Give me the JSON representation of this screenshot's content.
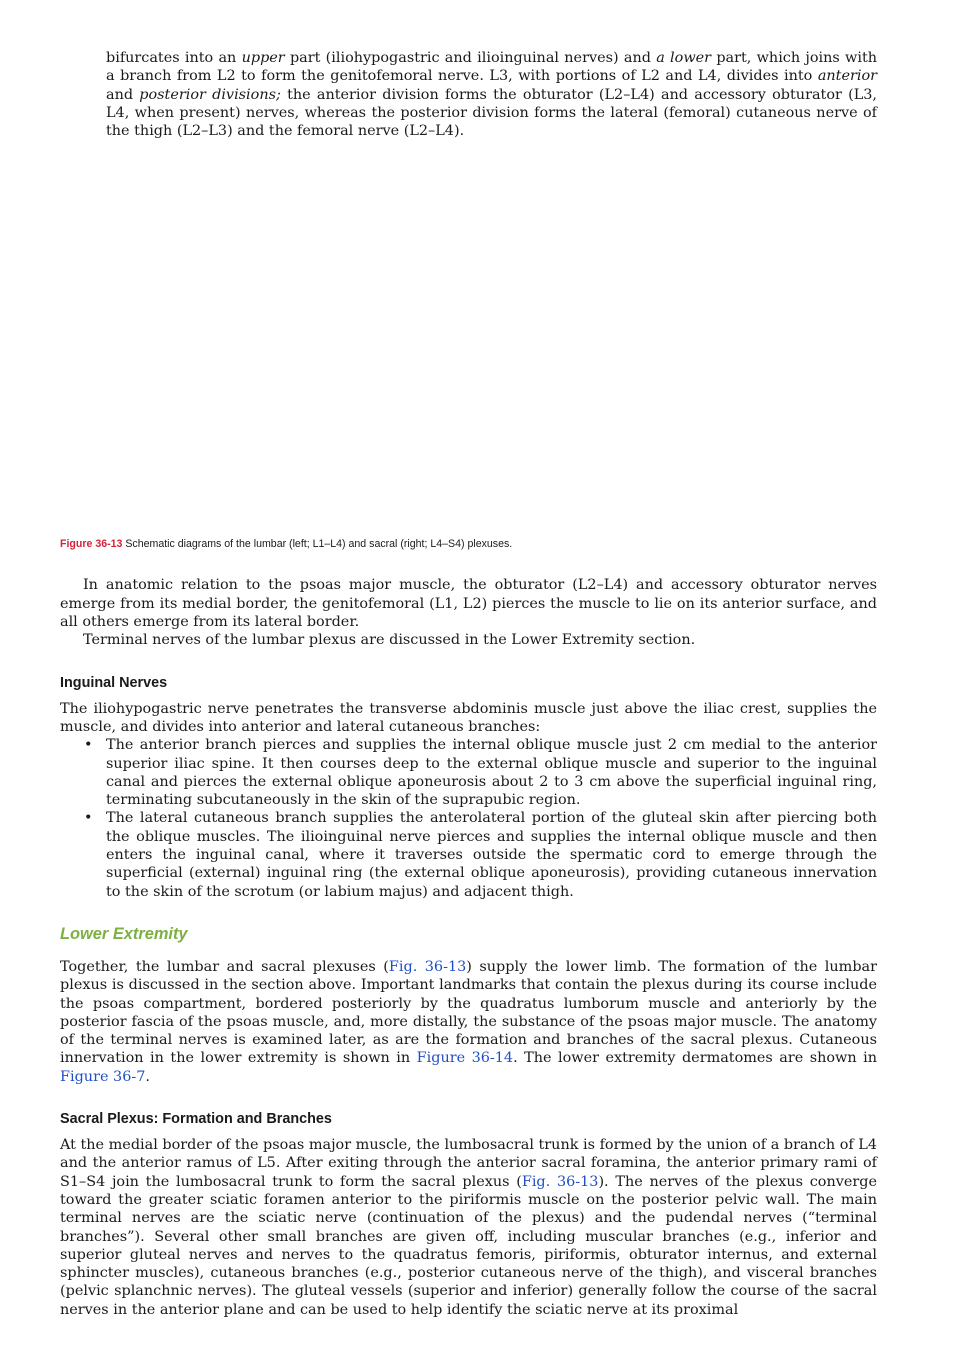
{
  "top_paragraph": {
    "p1": "bifurcates into an ",
    "e1": "upper",
    "p2": " part (iliohypogastric and ilioinguinal nerves) and ",
    "e2": "a lower",
    "p3": " part, which joins with a branch from L2 to form the genitofemoral nerve. L3, with portions of L2 and L4, divides into ",
    "e3": "anterior",
    "p4": " and ",
    "e4": "posterior divisions;",
    "p5": " the anterior division forms the obturator (L2–L4) and accessory obturator (L3, L4, when present) nerves, whereas the posterior division forms the lateral (femoral) cutaneous nerve of the thigh (L2–L3) and the femoral nerve (L2–L4)."
  },
  "figure": {
    "label": "Figure 36-13",
    "caption": " Schematic diagrams of the lumbar (left; L1–L4) and sacral (right; L4–S4) plexuses."
  },
  "psoas_paragraph": "In anatomic relation to the psoas major muscle, the obturator (L2–L4) and accessory obturator nerves emerge from its medial border, the genitofemoral (L1, L2) pierces the muscle to lie on its anterior surface, and all others emerge from its lateral border.",
  "terminal_paragraph": "Terminal nerves of the lumbar plexus are discussed in the Lower Extremity section.",
  "inguinal": {
    "heading": "Inguinal Nerves",
    "intro": "The iliohypogastric nerve penetrates the transverse abdominis muscle just above the iliac crest, supplies the muscle, and divides into anterior and lateral cutaneous branches:",
    "bullets": [
      "The anterior branch pierces and supplies the internal oblique muscle just 2 cm medial to the anterior superior iliac spine. It then courses deep to the external oblique muscle and superior to the inguinal canal and pierces the external oblique aponeurosis about 2 to 3 cm above the superficial inguinal ring, terminating subcutaneously in the skin of the suprapubic region.",
      "The lateral cutaneous branch supplies the anterolateral portion of the gluteal skin after piercing both the oblique muscles. The ilioinguinal nerve pierces and supplies the internal oblique muscle and then enters the inguinal canal, where it traverses outside the spermatic cord to emerge through the superficial (external) inguinal ring (the external oblique aponeurosis), providing cutaneous innervation to the skin of the scrotum (or labium majus) and adjacent thigh."
    ],
    "bullet_glyph": "•"
  },
  "lower_extremity": {
    "heading": "Lower Extremity",
    "p1": "Together, the lumbar and sacral plexuses (",
    "link1": "Fig. 36-13",
    "p2": ") supply the lower limb. The formation of the lumbar plexus is discussed in the section above. Important landmarks that contain the plexus during its course include the psoas compartment, bordered posteriorly by the quadratus lumborum muscle and anteriorly by the posterior fascia of the psoas muscle, and, more distally, the substance of the psoas major muscle. The anatomy of the terminal nerves is examined later, as are the formation and branches of the sacral plexus. Cutaneous innervation in the lower extremity is shown in ",
    "link2": "Figure 36-14",
    "p3": ". The lower extremity dermatomes are shown in ",
    "link3": "Figure 36-7",
    "p4": "."
  },
  "sacral": {
    "heading": "Sacral Plexus: Formation and Branches",
    "p1": "At the medial border of the psoas major muscle, the lumbosacral trunk is formed by the union of a branch of L4 and the anterior ramus of L5. After exiting through the anterior sacral foramina, the anterior primary rami of S1–S4 join the lumbosacral trunk to form the sacral plexus (",
    "link1": "Fig. 36-13",
    "p2": "). The nerves of the plexus converge toward the greater sciatic foramen anterior to the piriformis muscle on the posterior pelvic wall. The main terminal nerves are the sciatic nerve (continuation of the plexus) and the pudendal nerves (“terminal branches”). Several other small branches are given off, including muscular branches (e.g., inferior and superior gluteal nerves and nerves to the quadratus femoris, piriformis, obturator internus, and external sphincter muscles), cutaneous branches (e.g., posterior cutaneous nerve of the thigh), and visceral branches (pelvic splanchnic nerves). The gluteal vessels (superior and inferior) generally follow the course of the sacral nerves in the anterior plane and can be used to help identify the sciatic nerve at its proximal"
  },
  "colors": {
    "figure_label": "#d2233a",
    "section_heading": "#7db043",
    "link": "#1f4ec8"
  }
}
